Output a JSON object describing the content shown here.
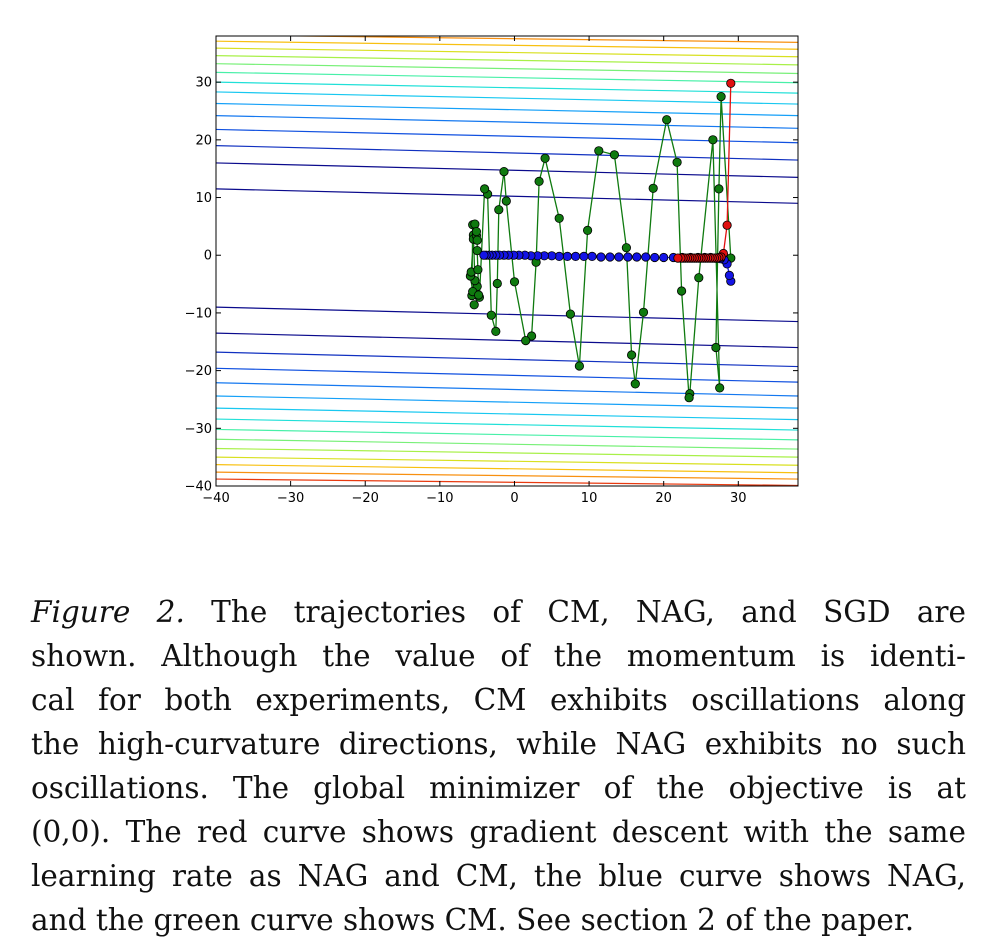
{
  "chart_data": {
    "type": "line",
    "title": "",
    "xlabel": "",
    "ylabel": "",
    "xlim": [
      -40,
      38
    ],
    "ylim": [
      -40,
      38
    ],
    "x_ticks": [
      -40,
      -30,
      -20,
      -10,
      0,
      10,
      20,
      30
    ],
    "x_tick_labels": [
      "−40",
      "−30",
      "−20",
      "−10",
      "0",
      "10",
      "20",
      "30"
    ],
    "y_ticks": [
      -40,
      -30,
      -20,
      -10,
      0,
      10,
      20,
      30
    ],
    "y_tick_labels": [
      "−40",
      "−30",
      "−20",
      "−10",
      "0",
      "10",
      "20",
      "30"
    ],
    "grid": false,
    "contour_levels": [
      {
        "y_left": 11.5,
        "y_right": 9.0,
        "color": "#0a0a8c"
      },
      {
        "y_left": 16.0,
        "y_right": 13.5,
        "color": "#0a0a8c"
      },
      {
        "y_left": 19.0,
        "y_right": 16.5,
        "color": "#1030c0"
      },
      {
        "y_left": 21.8,
        "y_right": 19.5,
        "color": "#1050e0"
      },
      {
        "y_left": 24.2,
        "y_right": 22.0,
        "color": "#1478f0"
      },
      {
        "y_left": 26.3,
        "y_right": 24.2,
        "color": "#14a0f8"
      },
      {
        "y_left": 28.3,
        "y_right": 26.2,
        "color": "#18c8f0"
      },
      {
        "y_left": 30.0,
        "y_right": 28.1,
        "color": "#20e0d8"
      },
      {
        "y_left": 31.7,
        "y_right": 29.9,
        "color": "#48f0a8"
      },
      {
        "y_left": 33.2,
        "y_right": 31.5,
        "color": "#78f078"
      },
      {
        "y_left": 34.6,
        "y_right": 33.0,
        "color": "#a8f048"
      },
      {
        "y_left": 35.9,
        "y_right": 34.4,
        "color": "#d8e020"
      },
      {
        "y_left": 37.1,
        "y_right": 35.7,
        "color": "#f8c010"
      },
      {
        "y_left": 38.2,
        "y_right": 36.9,
        "color": "#f89010"
      },
      {
        "y_left": -9.0,
        "y_right": -11.5,
        "color": "#0a0a8c"
      },
      {
        "y_left": -13.5,
        "y_right": -16.0,
        "color": "#0a0a8c"
      },
      {
        "y_left": -16.8,
        "y_right": -19.3,
        "color": "#1030c0"
      },
      {
        "y_left": -19.6,
        "y_right": -22.0,
        "color": "#1050e0"
      },
      {
        "y_left": -22.1,
        "y_right": -24.4,
        "color": "#1478f0"
      },
      {
        "y_left": -24.4,
        "y_right": -26.5,
        "color": "#14a0f8"
      },
      {
        "y_left": -26.5,
        "y_right": -28.5,
        "color": "#18c8f0"
      },
      {
        "y_left": -28.4,
        "y_right": -30.3,
        "color": "#20e0d8"
      },
      {
        "y_left": -30.2,
        "y_right": -32.0,
        "color": "#48f0a8"
      },
      {
        "y_left": -31.9,
        "y_right": -33.6,
        "color": "#78f078"
      },
      {
        "y_left": -33.5,
        "y_right": -35.0,
        "color": "#a8f048"
      },
      {
        "y_left": -35.0,
        "y_right": -36.4,
        "color": "#d8e020"
      },
      {
        "y_left": -36.3,
        "y_right": -37.7,
        "color": "#f8c010"
      },
      {
        "y_left": -37.6,
        "y_right": -38.8,
        "color": "#f89010"
      },
      {
        "y_left": -38.8,
        "y_right": -39.9,
        "color": "#e83a10"
      }
    ],
    "series": [
      {
        "role": "CM",
        "color": "#0f7a0f",
        "x": [
          29.0,
          27.7,
          27.4,
          27.0,
          27.5,
          26.6,
          24.7,
          23.5,
          23.4,
          22.4,
          21.8,
          20.4,
          18.6,
          17.3,
          16.2,
          15.7,
          15.0,
          13.4,
          11.3,
          9.8,
          8.7,
          7.5,
          6.0,
          4.1,
          3.3,
          2.9,
          2.3,
          1.5,
          0.0,
          -1.1,
          -1.4,
          -2.1,
          -2.3,
          -2.5,
          -3.1,
          -3.6,
          -4.0,
          -4.7,
          -5.0,
          -5.3,
          -5.5,
          -5.6,
          -5.7,
          -5.6,
          -5.9,
          -5.8,
          -5.5,
          -5.3,
          -5.1,
          -5.1,
          -5.0,
          -5.0,
          -4.9,
          -4.8,
          -5.4
        ],
        "y": [
          -0.5,
          27.5,
          11.5,
          -16.0,
          -23.0,
          20.0,
          -3.9,
          -24.0,
          -24.7,
          -6.2,
          16.1,
          23.5,
          11.6,
          -9.9,
          -22.3,
          -17.3,
          1.3,
          17.4,
          18.1,
          4.3,
          -19.2,
          -10.2,
          6.4,
          16.8,
          12.8,
          -1.2,
          -14.0,
          -14.8,
          -4.6,
          9.4,
          14.5,
          7.9,
          -4.9,
          -13.2,
          -10.4,
          10.6,
          11.5,
          -7.3,
          -5.4,
          -4.4,
          3.5,
          5.3,
          -7.0,
          -6.3,
          -3.6,
          -2.9,
          2.8,
          5.4,
          3.4,
          4.1,
          2.6,
          0.8,
          -2.5,
          -6.9,
          -8.6
        ]
      },
      {
        "role": "NAG",
        "color": "#1414e6",
        "x": [
          29.0,
          28.8,
          28.5,
          28.1,
          27.6,
          27.0,
          26.3,
          25.5,
          24.6,
          23.6,
          22.5,
          21.3,
          20.0,
          18.8,
          17.6,
          16.4,
          15.2,
          14.0,
          12.8,
          11.6,
          10.4,
          9.3,
          8.2,
          7.1,
          6.0,
          5.0,
          4.0,
          3.1,
          2.2,
          1.4,
          0.6,
          -0.1,
          -0.8,
          -1.4,
          -2.0,
          -2.5,
          -3.0,
          -3.4,
          -3.8,
          -4.1
        ],
        "y": [
          -4.5,
          -3.5,
          -1.5,
          -0.8,
          -0.6,
          -0.5,
          -0.4,
          -0.4,
          -0.4,
          -0.4,
          -0.4,
          -0.4,
          -0.4,
          -0.4,
          -0.3,
          -0.3,
          -0.3,
          -0.3,
          -0.3,
          -0.3,
          -0.2,
          -0.2,
          -0.2,
          -0.2,
          -0.2,
          -0.1,
          -0.1,
          -0.1,
          -0.1,
          0.0,
          0.0,
          0.0,
          0.0,
          0.0,
          0.0,
          0.0,
          0.0,
          0.0,
          0.0,
          0.0
        ]
      },
      {
        "role": "SGD",
        "color": "#e01010",
        "x": [
          29.0,
          28.5,
          28.0,
          27.7,
          27.4,
          27.1,
          26.8,
          26.5,
          26.2,
          25.9,
          25.6,
          25.3,
          25.0,
          24.7,
          24.4,
          24.1,
          23.8,
          23.5,
          23.2,
          22.9,
          22.6,
          22.3,
          21.9
        ],
        "y": [
          29.8,
          5.2,
          0.3,
          -0.3,
          -0.4,
          -0.5,
          -0.5,
          -0.5,
          -0.5,
          -0.5,
          -0.5,
          -0.5,
          -0.5,
          -0.5,
          -0.5,
          -0.5,
          -0.5,
          -0.5,
          -0.5,
          -0.5,
          -0.5,
          -0.5,
          -0.5
        ]
      }
    ]
  },
  "caption": {
    "label": "Figure 2.",
    "lines": [
      " The trajectories of CM, NAG, and SGD are",
      "shown.  Although the value of the momentum is identi-",
      "cal for both experiments, CM exhibits oscillations along",
      "the high-curvature directions, while NAG exhibits no such",
      "oscillations.  The global minimizer of the objective is at",
      "(0,0). The red curve shows gradient descent with the same",
      "learning rate as NAG and CM, the blue curve shows NAG,",
      "and the green curve shows CM. See section 2 of the paper."
    ]
  }
}
